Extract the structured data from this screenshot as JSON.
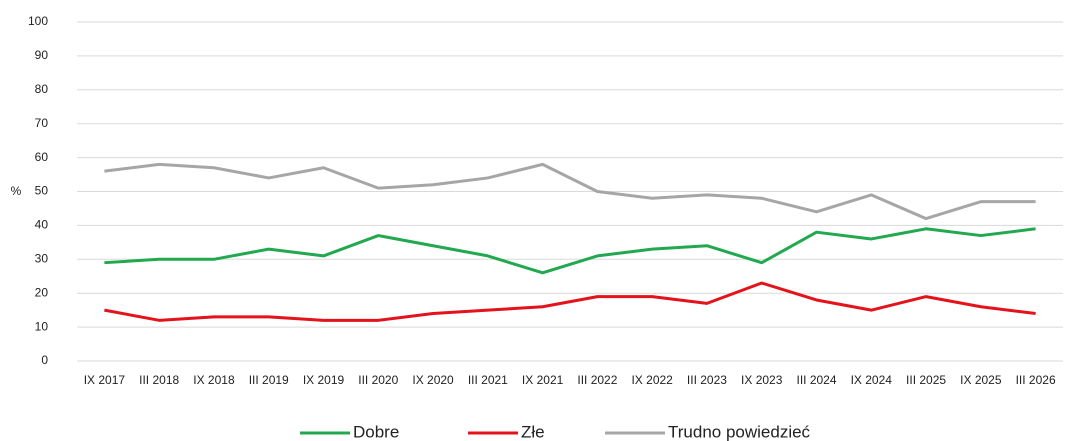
{
  "chart_data": {
    "type": "line",
    "y_label": "%",
    "categories": [
      "IX 2017",
      "III 2018",
      "IX 2018",
      "III 2019",
      "IX 2019",
      "III 2020",
      "IX 2020",
      "III 2021",
      "IX 2021",
      "III 2022",
      "IX 2022",
      "III 2023",
      "IX 2023",
      "III 2024",
      "IX 2024",
      "III 2025",
      "IX 2025",
      "III 2026"
    ],
    "series": [
      {
        "name": "Dobre",
        "color": "#22a84e",
        "values": [
          29,
          30,
          30,
          33,
          31,
          37,
          34,
          31,
          26,
          31,
          33,
          34,
          29,
          38,
          36,
          39,
          37,
          39
        ]
      },
      {
        "name": "Złe",
        "color": "#e3121b",
        "values": [
          15,
          12,
          13,
          13,
          12,
          12,
          14,
          15,
          16,
          19,
          19,
          17,
          23,
          18,
          15,
          19,
          16,
          14
        ]
      },
      {
        "name": "Trudno powiedzieć",
        "color": "#a6a6a6",
        "values": [
          56,
          58,
          57,
          54,
          57,
          51,
          52,
          54,
          58,
          50,
          48,
          49,
          48,
          44,
          49,
          42,
          47,
          47
        ]
      }
    ],
    "ylim": [
      0,
      100
    ],
    "yticks": [
      0,
      10,
      20,
      30,
      40,
      50,
      60,
      70,
      80,
      90,
      100
    ],
    "grid": true,
    "legend": "bottom"
  }
}
